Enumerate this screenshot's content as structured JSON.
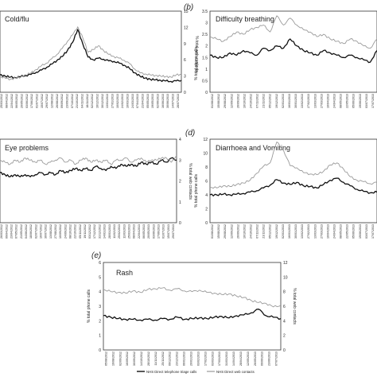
{
  "chart_data": [
    {
      "id": "a",
      "type": "line",
      "panel_letter": "",
      "title": "Cold/flu",
      "ylabel_left": "",
      "ylabel_right": "% total web contacts",
      "yticks_left": [
        "2"
      ],
      "yticks_right": [
        "0",
        "3",
        "6",
        "9",
        "12",
        "15"
      ],
      "ylim_right": [
        0,
        15
      ],
      "x_tick_labels": [
        "25/03/2012",
        "08/04/2012",
        "22/04/2012",
        "06/05/2012",
        "20/05/2012",
        "03/06/2012",
        "17/06/2012",
        "01/07/2012",
        "15/07/2012",
        "29/07/2012",
        "12/08/2012",
        "26/08/2012",
        "09/09/2012",
        "23/09/2012",
        "07/10/2012",
        "21/10/2012",
        "04/11/2012",
        "18/11/2012",
        "02/12/2012",
        "16/12/2012",
        "30/12/2012",
        "13/01/2013",
        "27/01/2013",
        "10/02/2013",
        "24/02/2013",
        "10/03/2013",
        "24/03/2013",
        "07/04/2013",
        "21/04/2013",
        "05/05/2013",
        "19/05/2013",
        "02/06/2013",
        "16/06/2013",
        "30/06/2013",
        "14/07/2013",
        "28/07/2013"
      ],
      "series": [
        {
          "role": "phone",
          "color": "#111111",
          "values": [
            3.2,
            3.0,
            2.8,
            2.7,
            2.9,
            3.1,
            3.3,
            3.7,
            4.1,
            4.6,
            5.2,
            5.9,
            6.6,
            7.7,
            9.2,
            11.6,
            8.9,
            6.5,
            6.0,
            6.3,
            6.1,
            5.8,
            5.7,
            5.4,
            5.0,
            4.4,
            3.6,
            3.0,
            2.6,
            2.4,
            2.3,
            2.2,
            2.1,
            2.0,
            2.1,
            2.2
          ]
        },
        {
          "role": "web",
          "color": "#9a9a9a",
          "values": [
            2.9,
            2.6,
            2.4,
            2.6,
            2.8,
            3.2,
            3.6,
            4.2,
            4.9,
            5.4,
            6.2,
            7.0,
            8.1,
            9.4,
            10.6,
            12.1,
            10.0,
            7.4,
            7.9,
            8.6,
            7.7,
            7.0,
            6.6,
            6.3,
            5.9,
            5.3,
            4.3,
            3.6,
            3.4,
            3.2,
            3.1,
            3.0,
            2.9,
            2.8,
            3.2,
            3.3
          ]
        }
      ]
    },
    {
      "id": "b",
      "type": "line",
      "panel_letter": "(b)",
      "title": "Difficulty breathing",
      "ylabel_left": "% total phone calls",
      "ylabel_right": "",
      "yticks_left": [
        "0",
        "0.5",
        "1",
        "1.5",
        "2",
        "2.5",
        "3",
        "3.5"
      ],
      "yticks_right": [],
      "ylim_left": [
        0,
        3.5
      ],
      "x_tick_labels": [
        "01/08/2012",
        "15/08/2012",
        "29/08/2012",
        "12/09/2012",
        "26/09/2012",
        "10/10/2012",
        "24/10/2012",
        "07/11/2012",
        "21/11/2012",
        "05/12/2012",
        "19/12/2012",
        "02/01/2013",
        "16/01/2013",
        "30/01/2013",
        "13/02/2013",
        "27/02/2013",
        "13/03/2013",
        "27/03/2013",
        "10/04/2013",
        "24/04/2013",
        "08/05/2013",
        "22/05/2013",
        "05/06/2013",
        "19/06/2013",
        "03/07/2013",
        "17/07/2013"
      ],
      "series": [
        {
          "role": "phone",
          "color": "#111111",
          "values": [
            1.6,
            1.5,
            1.5,
            1.7,
            1.6,
            1.8,
            1.7,
            1.6,
            1.9,
            1.8,
            2.0,
            1.9,
            2.3,
            2.0,
            1.8,
            1.7,
            1.6,
            1.8,
            1.7,
            1.6,
            1.5,
            1.6,
            1.5,
            1.4,
            1.3,
            1.8
          ]
        },
        {
          "role": "web",
          "color": "#9a9a9a",
          "values": [
            2.4,
            2.3,
            2.2,
            2.4,
            2.6,
            2.5,
            2.7,
            2.8,
            2.9,
            2.6,
            3.3,
            2.9,
            3.2,
            2.9,
            2.7,
            2.6,
            2.4,
            2.5,
            2.3,
            2.2,
            2.1,
            2.3,
            2.2,
            2.0,
            1.9,
            2.3
          ]
        }
      ]
    },
    {
      "id": "c",
      "type": "line",
      "panel_letter": "",
      "title": "Eye problems",
      "ylabel_left": "",
      "ylabel_right": "% total web contacts",
      "yticks_left": [],
      "yticks_right": [
        "0",
        "1",
        "2",
        "3",
        "4"
      ],
      "ylim_right": [
        0,
        4
      ],
      "x_tick_labels": [
        "26/03/2012",
        "09/04/2012",
        "23/04/2012",
        "07/05/2012",
        "21/05/2012",
        "04/06/2012",
        "18/06/2012",
        "02/07/2012",
        "16/07/2012",
        "30/07/2012",
        "13/08/2012",
        "27/08/2012",
        "10/09/2012",
        "24/09/2012",
        "08/10/2012",
        "22/10/2012",
        "05/11/2012",
        "19/11/2012",
        "03/12/2012",
        "17/12/2012",
        "31/12/2012",
        "14/01/2013",
        "28/01/2013",
        "11/02/2013",
        "25/02/2013",
        "11/03/2013",
        "25/03/2013",
        "08/04/2013",
        "22/04/2013",
        "06/05/2013",
        "20/05/2013",
        "03/06/2013",
        "17/06/2013",
        "01/07/2013",
        "15/07/2013",
        "29/07/2013"
      ],
      "series": [
        {
          "role": "phone",
          "color": "#111111",
          "values": [
            2.4,
            2.3,
            2.2,
            2.3,
            2.2,
            2.3,
            2.2,
            2.3,
            2.4,
            2.3,
            2.4,
            2.3,
            2.5,
            2.4,
            2.5,
            2.6,
            2.5,
            2.6,
            2.5,
            2.7,
            2.6,
            2.5,
            2.7,
            2.6,
            2.8,
            2.7,
            2.8,
            2.7,
            2.9,
            2.8,
            2.9,
            2.8,
            3.0,
            2.9,
            3.1,
            3.0
          ]
        },
        {
          "role": "web",
          "color": "#9a9a9a",
          "values": [
            3.0,
            2.9,
            2.8,
            3.0,
            2.9,
            3.1,
            3.0,
            2.9,
            3.0,
            2.8,
            2.9,
            3.0,
            3.1,
            2.9,
            3.0,
            2.8,
            3.0,
            3.1,
            2.9,
            3.0,
            2.9,
            3.0,
            2.8,
            3.0,
            3.0,
            3.1,
            2.9,
            3.0,
            3.1,
            2.9,
            3.0,
            3.0,
            3.1,
            3.1,
            2.9,
            3.2
          ]
        }
      ]
    },
    {
      "id": "d",
      "type": "line",
      "panel_letter": "(d)",
      "title": "Diarrhoea and Vomiting",
      "ylabel_left": "% total phone calls",
      "ylabel_right": "",
      "yticks_left": [
        "0",
        "2",
        "4",
        "6",
        "8",
        "10",
        "12"
      ],
      "yticks_right": [],
      "ylim_left": [
        0,
        12
      ],
      "x_tick_labels": [
        "01/08/2012",
        "15/08/2012",
        "29/08/2012",
        "12/09/2012",
        "26/09/2012",
        "10/10/2012",
        "24/10/2012",
        "07/11/2012",
        "21/11/2012",
        "05/12/2012",
        "19/12/2012",
        "02/01/2013",
        "16/01/2013",
        "30/01/2013",
        "13/02/2013",
        "27/02/2013",
        "13/03/2013",
        "27/03/2013",
        "10/04/2013",
        "24/04/2013",
        "08/05/2013",
        "22/05/2013",
        "05/06/2013",
        "19/06/2013",
        "03/07/2013",
        "17/07/2013"
      ],
      "series": [
        {
          "role": "phone",
          "color": "#111111",
          "values": [
            4.0,
            4.0,
            4.1,
            4.0,
            4.1,
            4.2,
            4.4,
            4.6,
            5.0,
            5.4,
            6.2,
            5.7,
            5.5,
            5.8,
            5.3,
            5.2,
            5.0,
            5.5,
            6.1,
            6.4,
            5.8,
            5.3,
            4.8,
            4.5,
            4.3,
            4.4
          ]
        },
        {
          "role": "web",
          "color": "#9a9a9a",
          "values": [
            5.1,
            5.0,
            5.3,
            5.2,
            5.5,
            5.7,
            6.1,
            7.1,
            8.1,
            8.6,
            11.6,
            10.4,
            8.2,
            7.9,
            7.2,
            7.0,
            6.9,
            7.4,
            8.3,
            8.6,
            7.7,
            6.6,
            6.1,
            5.9,
            5.6,
            5.8
          ]
        }
      ]
    },
    {
      "id": "e",
      "type": "line",
      "panel_letter": "(e)",
      "title": "Rash",
      "ylabel_left": "% total phone calls",
      "ylabel_right": "% total web contacts",
      "yticks_left": [
        "0",
        "1",
        "2",
        "3",
        "4",
        "5",
        "6"
      ],
      "yticks_right": [
        "0",
        "2",
        "4",
        "6",
        "8",
        "10",
        "12"
      ],
      "ylim_left": [
        0,
        6
      ],
      "ylim_right": [
        0,
        12
      ],
      "x_tick_labels": [
        "05/08/2012",
        "19/08/2012",
        "02/09/2012",
        "16/09/2012",
        "30/09/2012",
        "14/10/2012",
        "28/10/2012",
        "11/11/2012",
        "25/11/2012",
        "09/12/2012",
        "23/12/2012",
        "06/01/2013",
        "20/01/2013",
        "03/02/2013",
        "17/02/2013",
        "03/03/2013",
        "17/03/2013",
        "31/03/2013",
        "14/04/2013",
        "28/04/2013",
        "12/05/2013",
        "26/05/2013",
        "09/06/2013",
        "23/06/2013",
        "07/07/2013"
      ],
      "series": [
        {
          "name": "NHS Direct telephone triage calls",
          "role": "phone",
          "color": "#111111",
          "values": [
            4.7,
            4.5,
            4.3,
            4.2,
            4.2,
            4.1,
            4.2,
            4.1,
            4.3,
            4.2,
            4.5,
            4.2,
            4.3,
            4.4,
            4.3,
            4.5,
            4.6,
            4.4,
            4.7,
            4.8,
            5.1,
            5.6,
            4.7,
            4.5,
            4.3
          ]
        },
        {
          "name": "NHS Direct web contacts",
          "role": "web",
          "color": "#9a9a9a",
          "values": [
            8.3,
            8.0,
            7.9,
            7.8,
            8.1,
            7.9,
            8.3,
            8.4,
            8.5,
            8.2,
            8.4,
            8.1,
            8.0,
            8.2,
            7.9,
            7.8,
            7.6,
            7.7,
            7.4,
            7.2,
            6.8,
            6.5,
            6.4,
            5.9,
            6.1
          ]
        }
      ]
    }
  ]
}
